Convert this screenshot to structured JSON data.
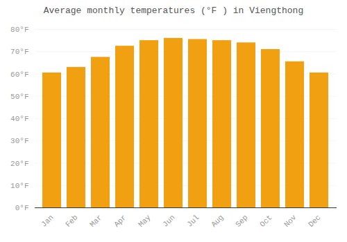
{
  "chart_data": {
    "type": "bar",
    "title": "Average monthly temperatures (°F ) in Viengthong",
    "categories": [
      "Jan",
      "Feb",
      "Mar",
      "Apr",
      "May",
      "Jun",
      "Jul",
      "Aug",
      "Sep",
      "Oct",
      "Nov",
      "Dec"
    ],
    "values": [
      60.5,
      63.0,
      67.5,
      72.5,
      75.0,
      76.0,
      75.5,
      75.0,
      74.0,
      71.0,
      65.5,
      60.5
    ],
    "color": "#F0A010",
    "ylim": [
      0,
      80
    ],
    "yticks": [
      {
        "value": 0,
        "label": "0°F"
      },
      {
        "value": 10,
        "label": "10°F"
      },
      {
        "value": 20,
        "label": "20°F"
      },
      {
        "value": 30,
        "label": "30°F"
      },
      {
        "value": 40,
        "label": "40°F"
      },
      {
        "value": 50,
        "label": "50°F"
      },
      {
        "value": 60,
        "label": "60°F"
      },
      {
        "value": 70,
        "label": "70°F"
      },
      {
        "value": 80,
        "label": "80°F"
      }
    ],
    "grid": true
  }
}
